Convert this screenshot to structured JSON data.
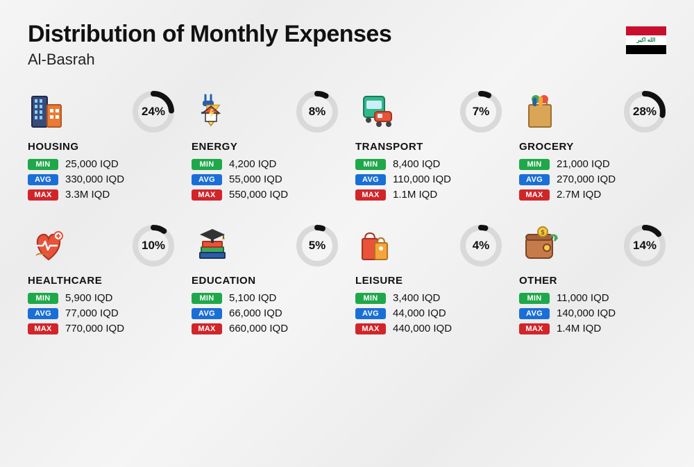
{
  "header": {
    "title": "Distribution of Monthly Expenses",
    "subtitle": "Al-Basrah",
    "flag_script": "الله اكبر"
  },
  "labels": {
    "min": "MIN",
    "avg": "AVG",
    "max": "MAX"
  },
  "donut": {
    "track_color": "#d9d9d9",
    "arc_color": "#111111",
    "stroke_width": 8,
    "radius": 26
  },
  "categories": [
    {
      "name": "HOUSING",
      "icon": "housing",
      "percent": 24,
      "min": "25,000 IQD",
      "avg": "330,000 IQD",
      "max": "3.3M IQD"
    },
    {
      "name": "ENERGY",
      "icon": "energy",
      "percent": 8,
      "min": "4,200 IQD",
      "avg": "55,000 IQD",
      "max": "550,000 IQD"
    },
    {
      "name": "TRANSPORT",
      "icon": "transport",
      "percent": 7,
      "min": "8,400 IQD",
      "avg": "110,000 IQD",
      "max": "1.1M IQD"
    },
    {
      "name": "GROCERY",
      "icon": "grocery",
      "percent": 28,
      "min": "21,000 IQD",
      "avg": "270,000 IQD",
      "max": "2.7M IQD"
    },
    {
      "name": "HEALTHCARE",
      "icon": "healthcare",
      "percent": 10,
      "min": "5,900 IQD",
      "avg": "77,000 IQD",
      "max": "770,000 IQD"
    },
    {
      "name": "EDUCATION",
      "icon": "education",
      "percent": 5,
      "min": "5,100 IQD",
      "avg": "66,000 IQD",
      "max": "660,000 IQD"
    },
    {
      "name": "LEISURE",
      "icon": "leisure",
      "percent": 4,
      "min": "3,400 IQD",
      "avg": "44,000 IQD",
      "max": "440,000 IQD"
    },
    {
      "name": "OTHER",
      "icon": "other",
      "percent": 14,
      "min": "11,000 IQD",
      "avg": "140,000 IQD",
      "max": "1.4M IQD"
    }
  ],
  "icons": {
    "housing": "<svg width='56' height='56' viewBox='0 0 56 56'><rect x='4' y='6' width='22' height='44' rx='2' fill='#3a4a7a' stroke='#1e2a4a' stroke-width='2'/><rect x='8' y='10' width='4' height='5' fill='#7fd3f7'/><rect x='15' y='10' width='4' height='5' fill='#7fd3f7'/><rect x='8' y='18' width='4' height='5' fill='#7fd3f7'/><rect x='15' y='18' width='4' height='5' fill='#7fd3f7'/><rect x='8' y='26' width='4' height='5' fill='#7fd3f7'/><rect x='15' y='26' width='4' height='5' fill='#7fd3f7'/><rect x='8' y='34' width='4' height='5' fill='#7fd3f7'/><rect x='15' y='34' width='4' height='5' fill='#7fd3f7'/><rect x='26' y='18' width='20' height='32' rx='2' fill='#e87b35' stroke='#b55620' stroke-width='2'/><rect x='30' y='24' width='5' height='5' fill='#fff'/><rect x='38' y='24' width='5' height='5' fill='#fff'/><rect x='30' y='33' width='5' height='5' fill='#fff'/><rect x='38' y='33' width='5' height='5' fill='#fff'/></svg>",
    "energy": "<svg width='56' height='56' viewBox='0 0 56 56'><path d='M18 4 L18 12 M26 4 L26 12' stroke='#2a5eaa' stroke-width='3' stroke-linecap='round'/><rect x='14' y='12' width='16' height='8' rx='3' fill='#2a5eaa'/><path d='M22 20 Q22 28 12 30' stroke='#2a5eaa' stroke-width='3' fill='none'/><polygon points='28,24 50,24 39,38 50,38 28,52 39,38 28,38' fill='#f7c948' stroke='#b38a1f' stroke-width='1.2' transform='translate(-4,-2) scale(0.85)'/><polygon points='26,48 20,40 32,40' fill='#ffe08a' stroke='#b38a1f' stroke-width='1.5'/><rect x='18' y='30' width='16' height='12' fill='#fff' stroke='#333' stroke-width='1.5'/><polygon points='14,30 26,20 38,30' fill='#e8533a' stroke='#333' stroke-width='1.5'/><polygon points='26,24 23,31 27,31 24,38 31,28 27,28 30,24' fill='#f7c948'/></svg>",
    "transport": "<svg width='56' height='56' viewBox='0 0 56 56'><rect x='10' y='6' width='30' height='30' rx='4' fill='#2fb88a' stroke='#1a7a5a' stroke-width='2'/><rect x='14' y='12' width='22' height='12' rx='2' fill='#cdeef7'/><circle cx='17' cy='40' r='4' fill='#444'/><circle cx='33' cy='40' r='4' fill='#444'/><rect x='26' y='28' width='24' height='14' rx='4' fill='#e8533a' stroke='#a8321f' stroke-width='2'/><rect x='30' y='31' width='7' height='6' rx='1' fill='#cdeef7'/><circle cx='32' cy='46' r='4' fill='#444'/><circle cx='46' cy='46' r='4' fill='#444'/></svg>",
    "grocery": "<svg width='56' height='56' viewBox='0 0 56 56'><rect x='12' y='18' width='32' height='32' rx='2' fill='#d9a556' stroke='#9c6f2e' stroke-width='2'/><path d='M18 18 L18 12 Q18 8 22 8 L34 8 Q38 8 38 12 L38 18' fill='none' stroke='#9c6f2e' stroke-width='2'/><circle cx='22' cy='10' r='6' fill='#3fa85a'/><circle cx='34' cy='10' r='6' fill='#e8533a'/><rect x='26' y='6' width='6' height='14' rx='3' fill='#f7a53a'/><rect x='18' y='8' width='5' height='12' rx='2' fill='#2a5eaa'/></svg>",
    "healthcare": "<svg width='56' height='56' viewBox='0 0 56 56'><path d='M28 48 C8 34 8 14 20 12 C26 11 28 18 28 18 C28 18 30 11 36 12 C48 14 48 34 28 48 Z' fill='#e8533a' stroke='#a8321f' stroke-width='2'/><path d='M12 28 L20 28 L23 22 L27 34 L30 28 L40 28' fill='none' stroke='#fff' stroke-width='2.5' stroke-linecap='round' stroke-linejoin='round'/><circle cx='42' cy='14' r='6' fill='#fff' stroke='#e8533a' stroke-width='2'/><path d='M42 11 L42 17 M39 14 L45 14' stroke='#e8533a' stroke-width='2'/><path d='M10 42 Q14 38 20 40 Q26 42 28 40' fill='#f7c27a' stroke='#b37a2e' stroke-width='1.5'/></svg>",
    "education": "<svg width='56' height='56' viewBox='0 0 56 56'><rect x='12' y='30' width='32' height='8' rx='1' fill='#3fa85a' stroke='#1e6e38' stroke-width='2'/><rect x='14' y='22' width='28' height='8' rx='1' fill='#e8533a' stroke='#a8321f' stroke-width='2'/><rect x='10' y='38' width='36' height='8' rx='1' fill='#2a5eaa' stroke='#17365e' stroke-width='2'/><polygon points='28,4 10,12 28,20 46,12' fill='#333'/><rect x='26' y='16' width='4' height='8' fill='#333'/><circle cx='44' cy='18' r='2' fill='#f7c948'/><line x1='44' y1='12' x2='44' y2='18' stroke='#333' stroke-width='1.5'/></svg>",
    "leisure": "<svg width='56' height='56' viewBox='0 0 56 56'><rect x='8' y='18' width='22' height='30' rx='2' fill='#e8533a' stroke='#a8321f' stroke-width='2'/><path d='M12 18 Q12 10 19 10 Q26 10 26 18' fill='none' stroke='#a8321f' stroke-width='2'/><rect x='26' y='24' width='18' height='24' rx='2' fill='#f7a53a' stroke='#b37320' stroke-width='2'/><path d='M30 24 Q30 17 35 17 Q40 17 40 24' fill='none' stroke='#b37320' stroke-width='2'/><circle cx='35' cy='32' r='3' fill='#fff'/></svg>",
    "other": "<svg width='56' height='56' viewBox='0 0 56 56'><rect x='8' y='16' width='38' height='30' rx='6' fill='#c77a4a' stroke='#7a4425' stroke-width='2'/><rect x='8' y='12' width='38' height='8' rx='4' fill='#a5623a' stroke='#7a4425' stroke-width='2'/><circle cx='38' cy='31' r='5' fill='#f7c948' stroke='#7a4425' stroke-width='2'/><circle cx='32' cy='8' r='7' fill='#f7c948' stroke='#b38a1f' stroke-width='2'/><text x='32' y='12' font-size='9' text-anchor='middle' fill='#7a5a10' font-weight='bold'>$</text><path d='M44 14 Q52 10 50 20' fill='none' stroke='#3fa85a' stroke-width='3' stroke-linecap='round'/><polygon points='48,22 54,18 52,12' fill='#3fa85a'/></svg>"
  }
}
